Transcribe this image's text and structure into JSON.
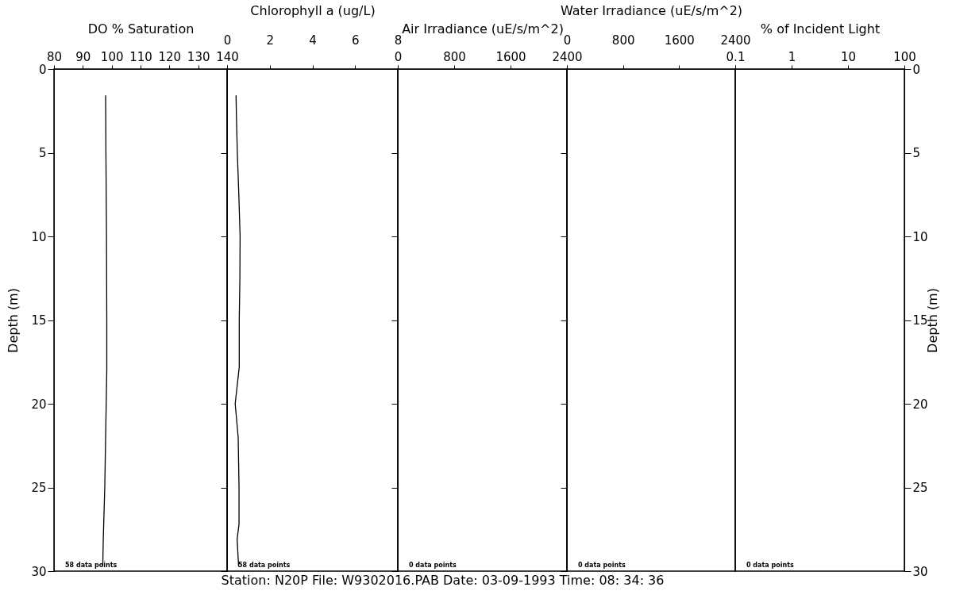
{
  "chart_data": [
    {
      "type": "line",
      "xlabel": "DO % Saturation",
      "ylabel": "Depth (m)",
      "xlim": [
        80,
        140
      ],
      "xticks": [
        80,
        90,
        100,
        110,
        120,
        130,
        140
      ],
      "ylim": [
        30,
        0
      ],
      "yticks": [
        0,
        5,
        10,
        15,
        20,
        25,
        30
      ],
      "series": [
        {
          "color": "#000000",
          "x": [
            97.9,
            98.0,
            98.2,
            98.3,
            98.3,
            98.1,
            97.9,
            97.6,
            97.1,
            96.9
          ],
          "values": [
            1.6,
            5,
            10,
            15,
            18,
            20,
            22,
            25,
            28,
            29.7
          ]
        }
      ],
      "annotations": [
        "58 data points"
      ]
    },
    {
      "type": "line",
      "xlabel": "Chlorophyll a (ug/L)",
      "xlim": [
        0,
        8
      ],
      "xticks": [
        0,
        2,
        4,
        6,
        8
      ],
      "ylim": [
        30,
        0
      ],
      "yticks": [
        0,
        5,
        10,
        15,
        20,
        25,
        30
      ],
      "tick_labels": "x",
      "series": [
        {
          "color": "#000000",
          "x": [
            0.42,
            0.44,
            0.48,
            0.55,
            0.61,
            0.6,
            0.57,
            0.57,
            0.38,
            0.52,
            0.56,
            0.56,
            0.47,
            0.54
          ],
          "values": [
            1.6,
            3,
            5,
            7.5,
            10,
            12.5,
            15,
            17.8,
            20,
            22,
            25,
            27.2,
            28.1,
            29.7
          ]
        }
      ],
      "annotations": [
        "58 data points"
      ]
    },
    {
      "type": "line",
      "xlabel": "Air Irradiance (uE/s/m^2)",
      "xlim": [
        0,
        2400
      ],
      "xticks": [
        0,
        800,
        1600,
        2400
      ],
      "ylim": [
        30,
        0
      ],
      "yticks": [
        0,
        5,
        10,
        15,
        20,
        25,
        30
      ],
      "tick_labels": "x",
      "annotations": [
        "0 data points",
        "Station: N20P File: W9302016.PAB Date: 03-09-1993 Time: 08: 34: 36"
      ]
    },
    {
      "type": "line",
      "xlabel": "Water Irradiance (uE/s/m^2)",
      "xlim": [
        0,
        2400
      ],
      "xticks": [
        0,
        800,
        1600,
        2400
      ],
      "ylim": [
        30,
        0
      ],
      "yticks": [
        0,
        5,
        10,
        15,
        20,
        25,
        30
      ],
      "tick_labels": "x",
      "annotations": [
        "0 data points"
      ]
    },
    {
      "type": "line",
      "xlabel": "% of Incident Light",
      "log": "x",
      "xlim": [
        0.1,
        100
      ],
      "xticks": [
        0.1,
        1,
        10,
        100
      ],
      "ylabel": "Depth (m)",
      "ylim": [
        30,
        0
      ],
      "yticks": [
        0,
        5,
        10,
        15,
        20,
        25,
        30
      ],
      "annotations": [
        "0 data points"
      ]
    }
  ]
}
